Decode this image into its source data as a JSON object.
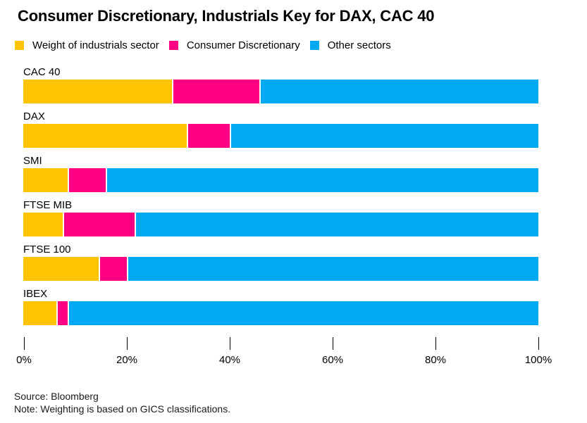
{
  "title": "Consumer Discretionary, Industrials Key for DAX, CAC 40",
  "footer": {
    "source": "Source: Bloomberg",
    "note": "Note: Weighting is based on GICS classifications."
  },
  "colors": {
    "industrials": "#FFC400",
    "consumer_discretionary": "#FF0082",
    "other_sectors": "#00A9F4",
    "text": "#000000",
    "background": "#FFFFFF"
  },
  "chart_data": {
    "type": "bar",
    "orientation": "horizontal",
    "stacked": true,
    "stack_total": 100,
    "title": "Consumer Discretionary, Industrials Key for DAX, CAC 40",
    "categories": [
      "CAC 40",
      "DAX",
      "SMI",
      "FTSE MIB",
      "FTSE 100",
      "IBEX"
    ],
    "series": [
      {
        "name": "Weight of industrials sector",
        "color": "#FFC400",
        "values": [
          29.0,
          31.9,
          8.6,
          7.7,
          14.7,
          6.5
        ]
      },
      {
        "name": "Consumer Discretionary",
        "color": "#FF0082",
        "values": [
          16.8,
          8.1,
          7.2,
          13.8,
          5.2,
          1.9
        ]
      },
      {
        "name": "Other sectors",
        "color": "#00A9F4",
        "values": [
          54.2,
          60.0,
          84.2,
          78.5,
          80.1,
          91.6
        ]
      }
    ],
    "x_ticks": [
      "0%",
      "20%",
      "40%",
      "60%",
      "80%",
      "100%"
    ],
    "xlim": [
      0,
      100
    ],
    "xlabel": "",
    "ylabel": "",
    "grid": false,
    "legend_position": "top"
  }
}
